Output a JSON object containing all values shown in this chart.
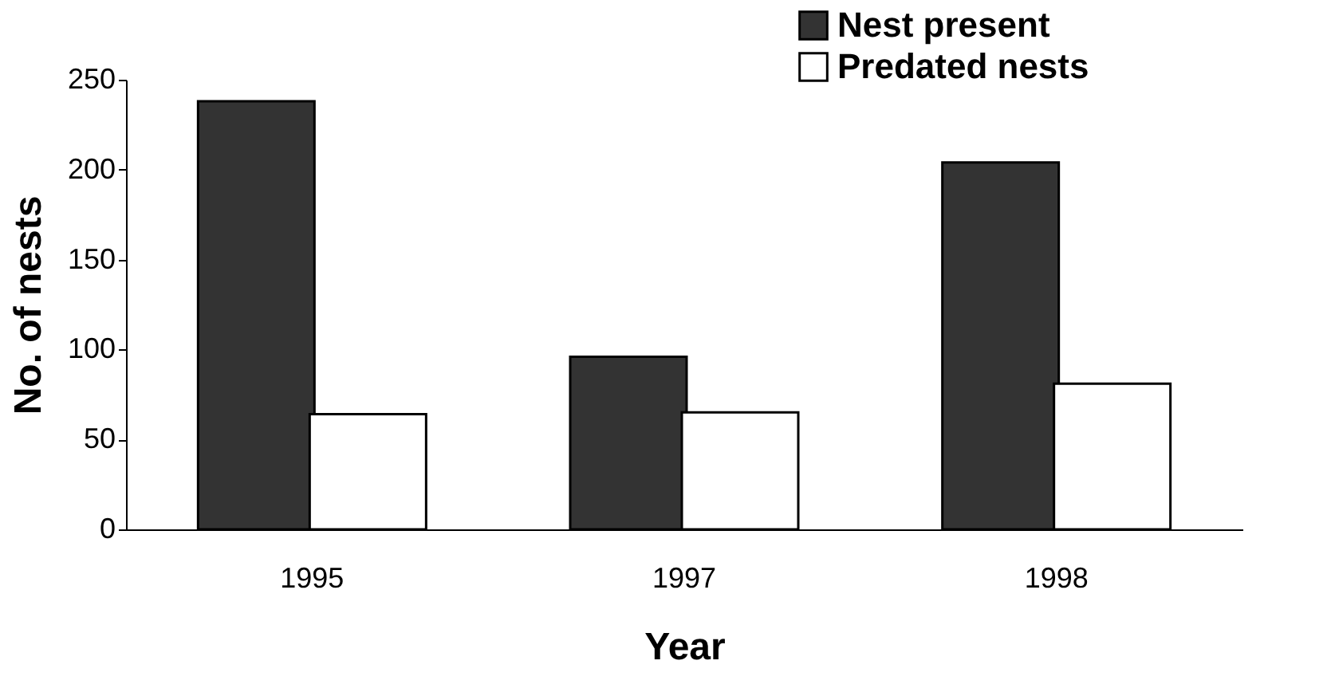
{
  "chart_data": {
    "type": "bar",
    "xlabel": "Year",
    "ylabel": "No. of nests",
    "categories": [
      "1995",
      "1997",
      "1998"
    ],
    "series": [
      {
        "name": "Nest present",
        "color": "#333333",
        "values": [
          238,
          96,
          204
        ]
      },
      {
        "name": "Predated nests",
        "color": "#ffffff",
        "values": [
          64,
          65,
          81
        ]
      }
    ],
    "ylim": [
      0,
      250
    ],
    "yticks": [
      0,
      50,
      100,
      150,
      200,
      250
    ],
    "grid": false,
    "legend": "top right"
  }
}
